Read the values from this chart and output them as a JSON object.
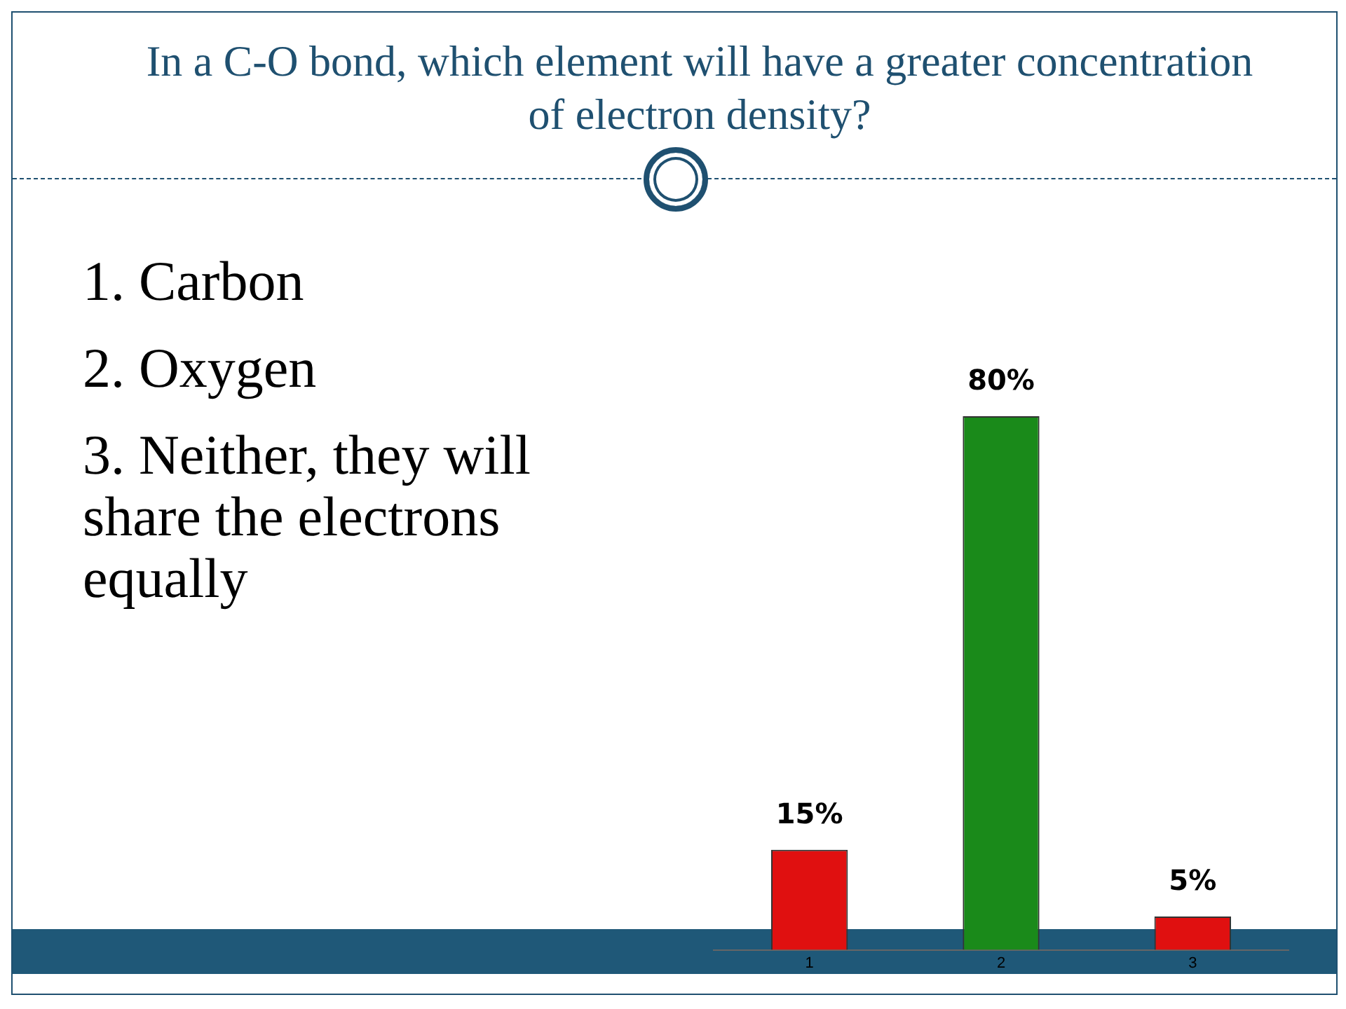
{
  "chart_data": {
    "type": "bar",
    "title": "In a C-O bond, which element will have a greater concentration of electron density?",
    "categories": [
      "1",
      "2",
      "3"
    ],
    "values": [
      15,
      80,
      5
    ],
    "colors": [
      "#e01010",
      "#1a8a1a",
      "#e01010"
    ],
    "value_labels": [
      "15%",
      "80%",
      "5%"
    ],
    "annotations": [
      "1. Carbon",
      "2. Oxygen",
      "3. Neither, they will share the electrons equally"
    ],
    "grid": false,
    "legend": false
  }
}
